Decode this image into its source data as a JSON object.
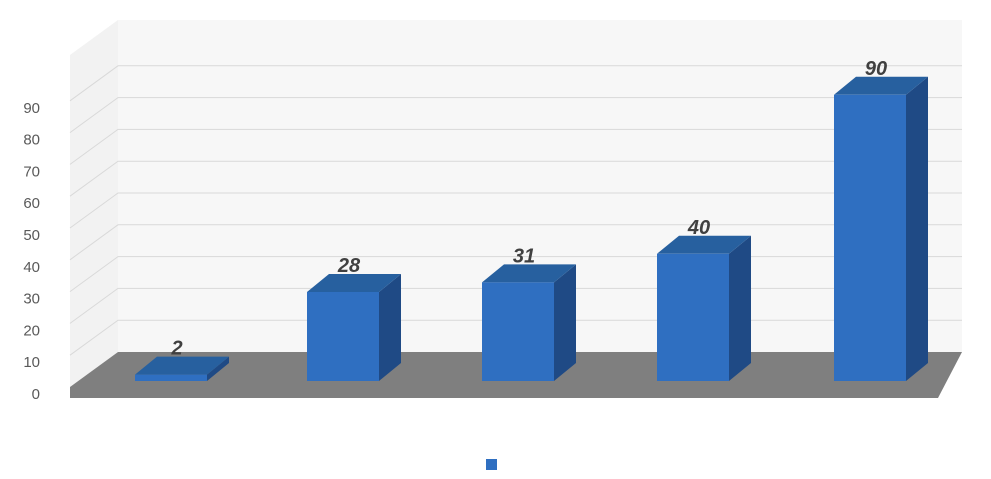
{
  "chart_data": {
    "type": "bar",
    "title": "",
    "xlabel": "",
    "ylabel": "",
    "categories": [
      "",
      "",
      "",
      "",
      ""
    ],
    "series": [
      {
        "name": "",
        "values": [
          2,
          28,
          31,
          40,
          90
        ]
      }
    ],
    "data_labels": [
      "2",
      "28",
      "31",
      "40",
      "90"
    ],
    "ylim": [
      0,
      90
    ],
    "yticks": [
      "0",
      "10",
      "20",
      "30",
      "40",
      "50",
      "60",
      "70",
      "80",
      "90"
    ],
    "grid": true,
    "legend_position": "bottom",
    "colors": {
      "bar_front": "#2f6fc1",
      "bar_side": "#1f4a85",
      "bar_top": "#27609f",
      "floor": "#7f7f7f",
      "grid": "#d9d9d9",
      "wall": "#f2f2f2"
    },
    "style": "3d"
  }
}
